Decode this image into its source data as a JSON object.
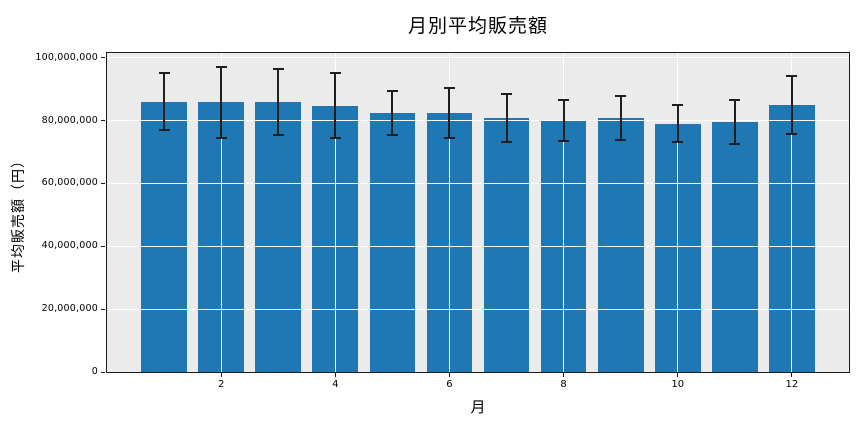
{
  "chart_data": {
    "type": "bar",
    "title": "月別平均販売額",
    "xlabel": "月",
    "ylabel": "平均販売額（円）",
    "categories": [
      1,
      2,
      3,
      4,
      5,
      6,
      7,
      8,
      9,
      10,
      11,
      12
    ],
    "values": [
      86000000,
      85800000,
      85900000,
      84700000,
      82300000,
      82400000,
      80700000,
      80100000,
      80900000,
      79000000,
      79400000,
      85000000
    ],
    "errors": [
      9000000,
      11300000,
      10400000,
      10300000,
      7000000,
      8100000,
      7600000,
      6600000,
      7000000,
      5900000,
      7000000,
      9300000
    ],
    "bar_width_fraction": 0.8,
    "xlim": [
      0,
      13
    ],
    "ylim": [
      0,
      101500000
    ],
    "grid": true,
    "legend": "none",
    "xticks": [
      {
        "value": 2,
        "label": "2"
      },
      {
        "value": 4,
        "label": "4"
      },
      {
        "value": 6,
        "label": "6"
      },
      {
        "value": 8,
        "label": "8"
      },
      {
        "value": 10,
        "label": "10"
      },
      {
        "value": 12,
        "label": "12"
      }
    ],
    "yticks": [
      {
        "value": 0,
        "label": "0"
      },
      {
        "value": 20000000,
        "label": "20,000,000"
      },
      {
        "value": 40000000,
        "label": "40,000,000"
      },
      {
        "value": 60000000,
        "label": "60,000,000"
      },
      {
        "value": 80000000,
        "label": "80,000,000"
      },
      {
        "value": 100000000,
        "label": "100,000,000"
      }
    ],
    "colors": {
      "bar": "#1f77b4",
      "plot_background": "#ebebeb",
      "figure_background": "#ffffff",
      "gridline": "#ffffff",
      "spine": "#1c1c1c",
      "error_bar": "#1f1f1f",
      "text": "#000000"
    }
  }
}
